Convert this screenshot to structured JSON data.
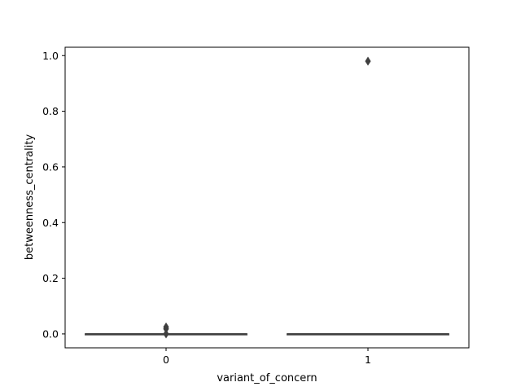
{
  "chart_data": {
    "type": "box",
    "title": "",
    "xlabel": "variant_of_concern",
    "ylabel": "betweenness_centrality",
    "categories": [
      "0",
      "1"
    ],
    "ylim": [
      -0.05,
      1.03
    ],
    "yticks": [
      0.0,
      0.2,
      0.4,
      0.6,
      0.8,
      1.0
    ],
    "ytick_labels": [
      "0.0",
      "0.2",
      "0.4",
      "0.6",
      "0.8",
      "1.0"
    ],
    "grid": false,
    "legend": "none",
    "boxes": [
      {
        "category": "0",
        "min": 0.0,
        "q1": 0.0,
        "median": 0.0,
        "q3": 0.0,
        "max": 0.0,
        "outliers": [
          0.025,
          0.018,
          0.0
        ]
      },
      {
        "category": "1",
        "min": 0.0,
        "q1": 0.0,
        "median": 0.0,
        "q3": 0.0,
        "max": 0.0,
        "outliers": [
          0.98
        ]
      }
    ],
    "colors": {
      "box_line": "#3f3f3f",
      "outlier": "#3f3f3f",
      "axes": "#000000"
    }
  }
}
